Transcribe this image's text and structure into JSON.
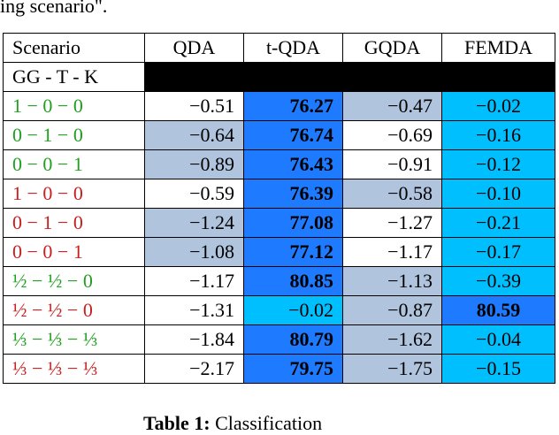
{
  "preceding_text": "ing scenario\".",
  "table": {
    "header": [
      "Scenario",
      "QDA",
      "t-QDA",
      "GQDA",
      "FEMDA"
    ],
    "subheader": "GG - T - K",
    "rows": [
      [
        "1 − 0 − 0",
        "−0.51",
        "76.27",
        "−0.47",
        "−0.02"
      ],
      [
        "0 − 1 − 0",
        "−0.64",
        "76.74",
        "−0.69",
        "−0.16"
      ],
      [
        "0 − 0 − 1",
        "−0.89",
        "76.43",
        "−0.91",
        "−0.12"
      ],
      [
        "1 − 0 − 0",
        "−0.59",
        "76.39",
        "−0.58",
        "−0.10"
      ],
      [
        "0 − 1 − 0",
        "−1.24",
        "77.08",
        "−1.27",
        "−0.21"
      ],
      [
        "0 − 0 − 1",
        "−1.08",
        "77.12",
        "−1.17",
        "−0.17"
      ],
      [
        "½ − ½ − 0",
        "−1.17",
        "80.85",
        "−1.13",
        "−0.39"
      ],
      [
        "½ − ½ − 0",
        "−1.31",
        "−0.02",
        "−0.87",
        "80.59"
      ],
      [
        "⅓ − ⅓ − ⅓",
        "−1.84",
        "80.79",
        "−1.62",
        "−0.04"
      ],
      [
        "⅓ − ⅓ − ⅓",
        "−2.17",
        "79.75",
        "−1.75",
        "−0.15"
      ]
    ]
  },
  "caption": {
    "label": "Table 1:",
    "text": "Classification"
  }
}
